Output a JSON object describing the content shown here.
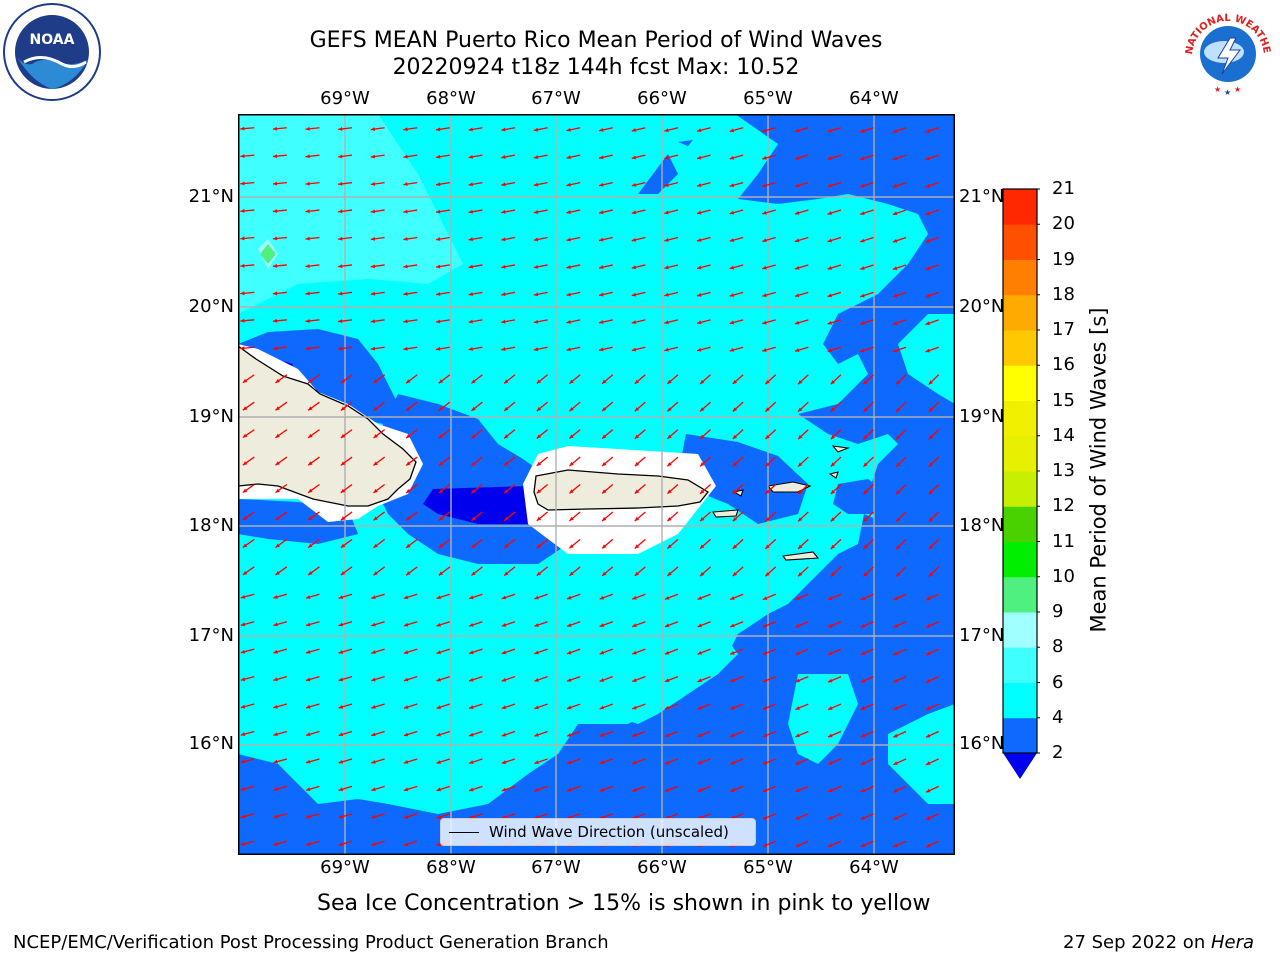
{
  "header": {
    "title_line1": "GEFS MEAN Puerto Rico Mean Period of Wind Waves",
    "title_line2": "20220924 t18z 144h fcst   Max: 10.52"
  },
  "logos": {
    "left": {
      "name": "noaa-logo",
      "text": "NOAA"
    },
    "right": {
      "name": "nws-logo",
      "text": "NATIONAL WEATHER SERVICE"
    }
  },
  "map": {
    "lon_labels": [
      "69°W",
      "68°W",
      "67°W",
      "66°W",
      "65°W",
      "64°W"
    ],
    "lat_labels": [
      "21°N",
      "20°N",
      "19°N",
      "18°N",
      "17°N",
      "16°N"
    ],
    "lon_range": [
      -70.0,
      -63.25
    ],
    "lat_range": [
      15.0,
      21.75
    ],
    "legend_label": "Wind Wave Direction (unscaled)",
    "arrow_color": "#ff0000",
    "land_color": "#eeecdc",
    "gridline_color": "#b0b0b0"
  },
  "colorbar": {
    "label": "Mean Period of Wind Waves [s]",
    "ticks": [
      "2",
      "4",
      "6",
      "8",
      "9",
      "10",
      "11",
      "12",
      "13",
      "14",
      "15",
      "16",
      "17",
      "18",
      "19",
      "20",
      "21"
    ],
    "colors": [
      "#0d69ff",
      "#00ffff",
      "#40ffff",
      "#a0ffff",
      "#50f080",
      "#00ee00",
      "#4ad200",
      "#c6f000",
      "#e6f000",
      "#f0f000",
      "#ffff00",
      "#ffc800",
      "#ffaa00",
      "#ff8000",
      "#ff5000",
      "#ff2800",
      "#ff0000"
    ],
    "under_color": "#0000ee",
    "max_value": 10.52
  },
  "bottom_note": "Sea Ice Concentration > 15% is shown in pink to yellow",
  "footer": {
    "left": "NCEP/EMC/Verification Post Processing Product Generation Branch",
    "right_date": "27 Sep 2022 on ",
    "right_host": "Hera"
  }
}
